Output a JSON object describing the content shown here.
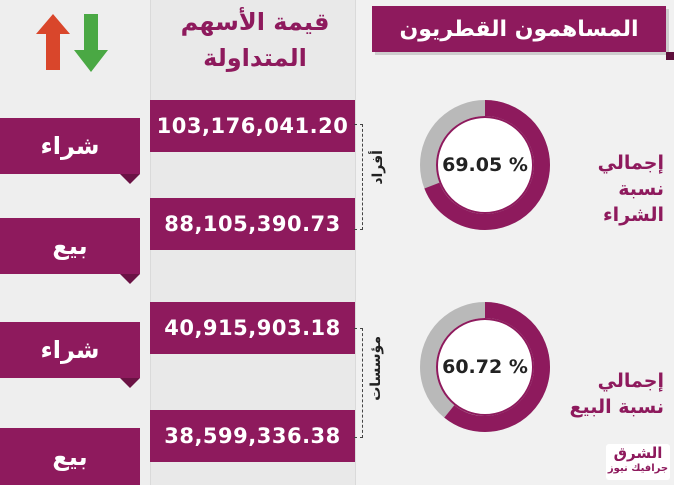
{
  "title": "المساهمون القطريون",
  "column_header": "قيمة الأسهم المتداولة",
  "colors": {
    "accent": "#8e1a5d",
    "ring_gray": "#b9b9b9",
    "arrow_up": "#d9462b",
    "arrow_down": "#4aa844"
  },
  "icons": {
    "arrows": "up-down-arrows-icon"
  },
  "groups": [
    {
      "label": "أفراد",
      "rows": [
        {
          "type": "شراء",
          "value": "103,176,041.20"
        },
        {
          "type": "بيع",
          "value": "88,105,390.73"
        }
      ]
    },
    {
      "label": "مؤسسات",
      "rows": [
        {
          "type": "شراء",
          "value": "40,915,903.18"
        },
        {
          "type": "بيع",
          "value": "38,599,336.38"
        }
      ]
    }
  ],
  "stats": [
    {
      "label_line1": "إجمالي",
      "label_line2": "نسبة الشراء",
      "value": "69.05 %",
      "percent": 69.05
    },
    {
      "label_line1": "إجمالي",
      "label_line2": "نسبة البيع",
      "value": "60.72 %",
      "percent": 60.72
    }
  ],
  "logo": {
    "line1": "الشرق",
    "line2": "جرافيك نيوز"
  }
}
